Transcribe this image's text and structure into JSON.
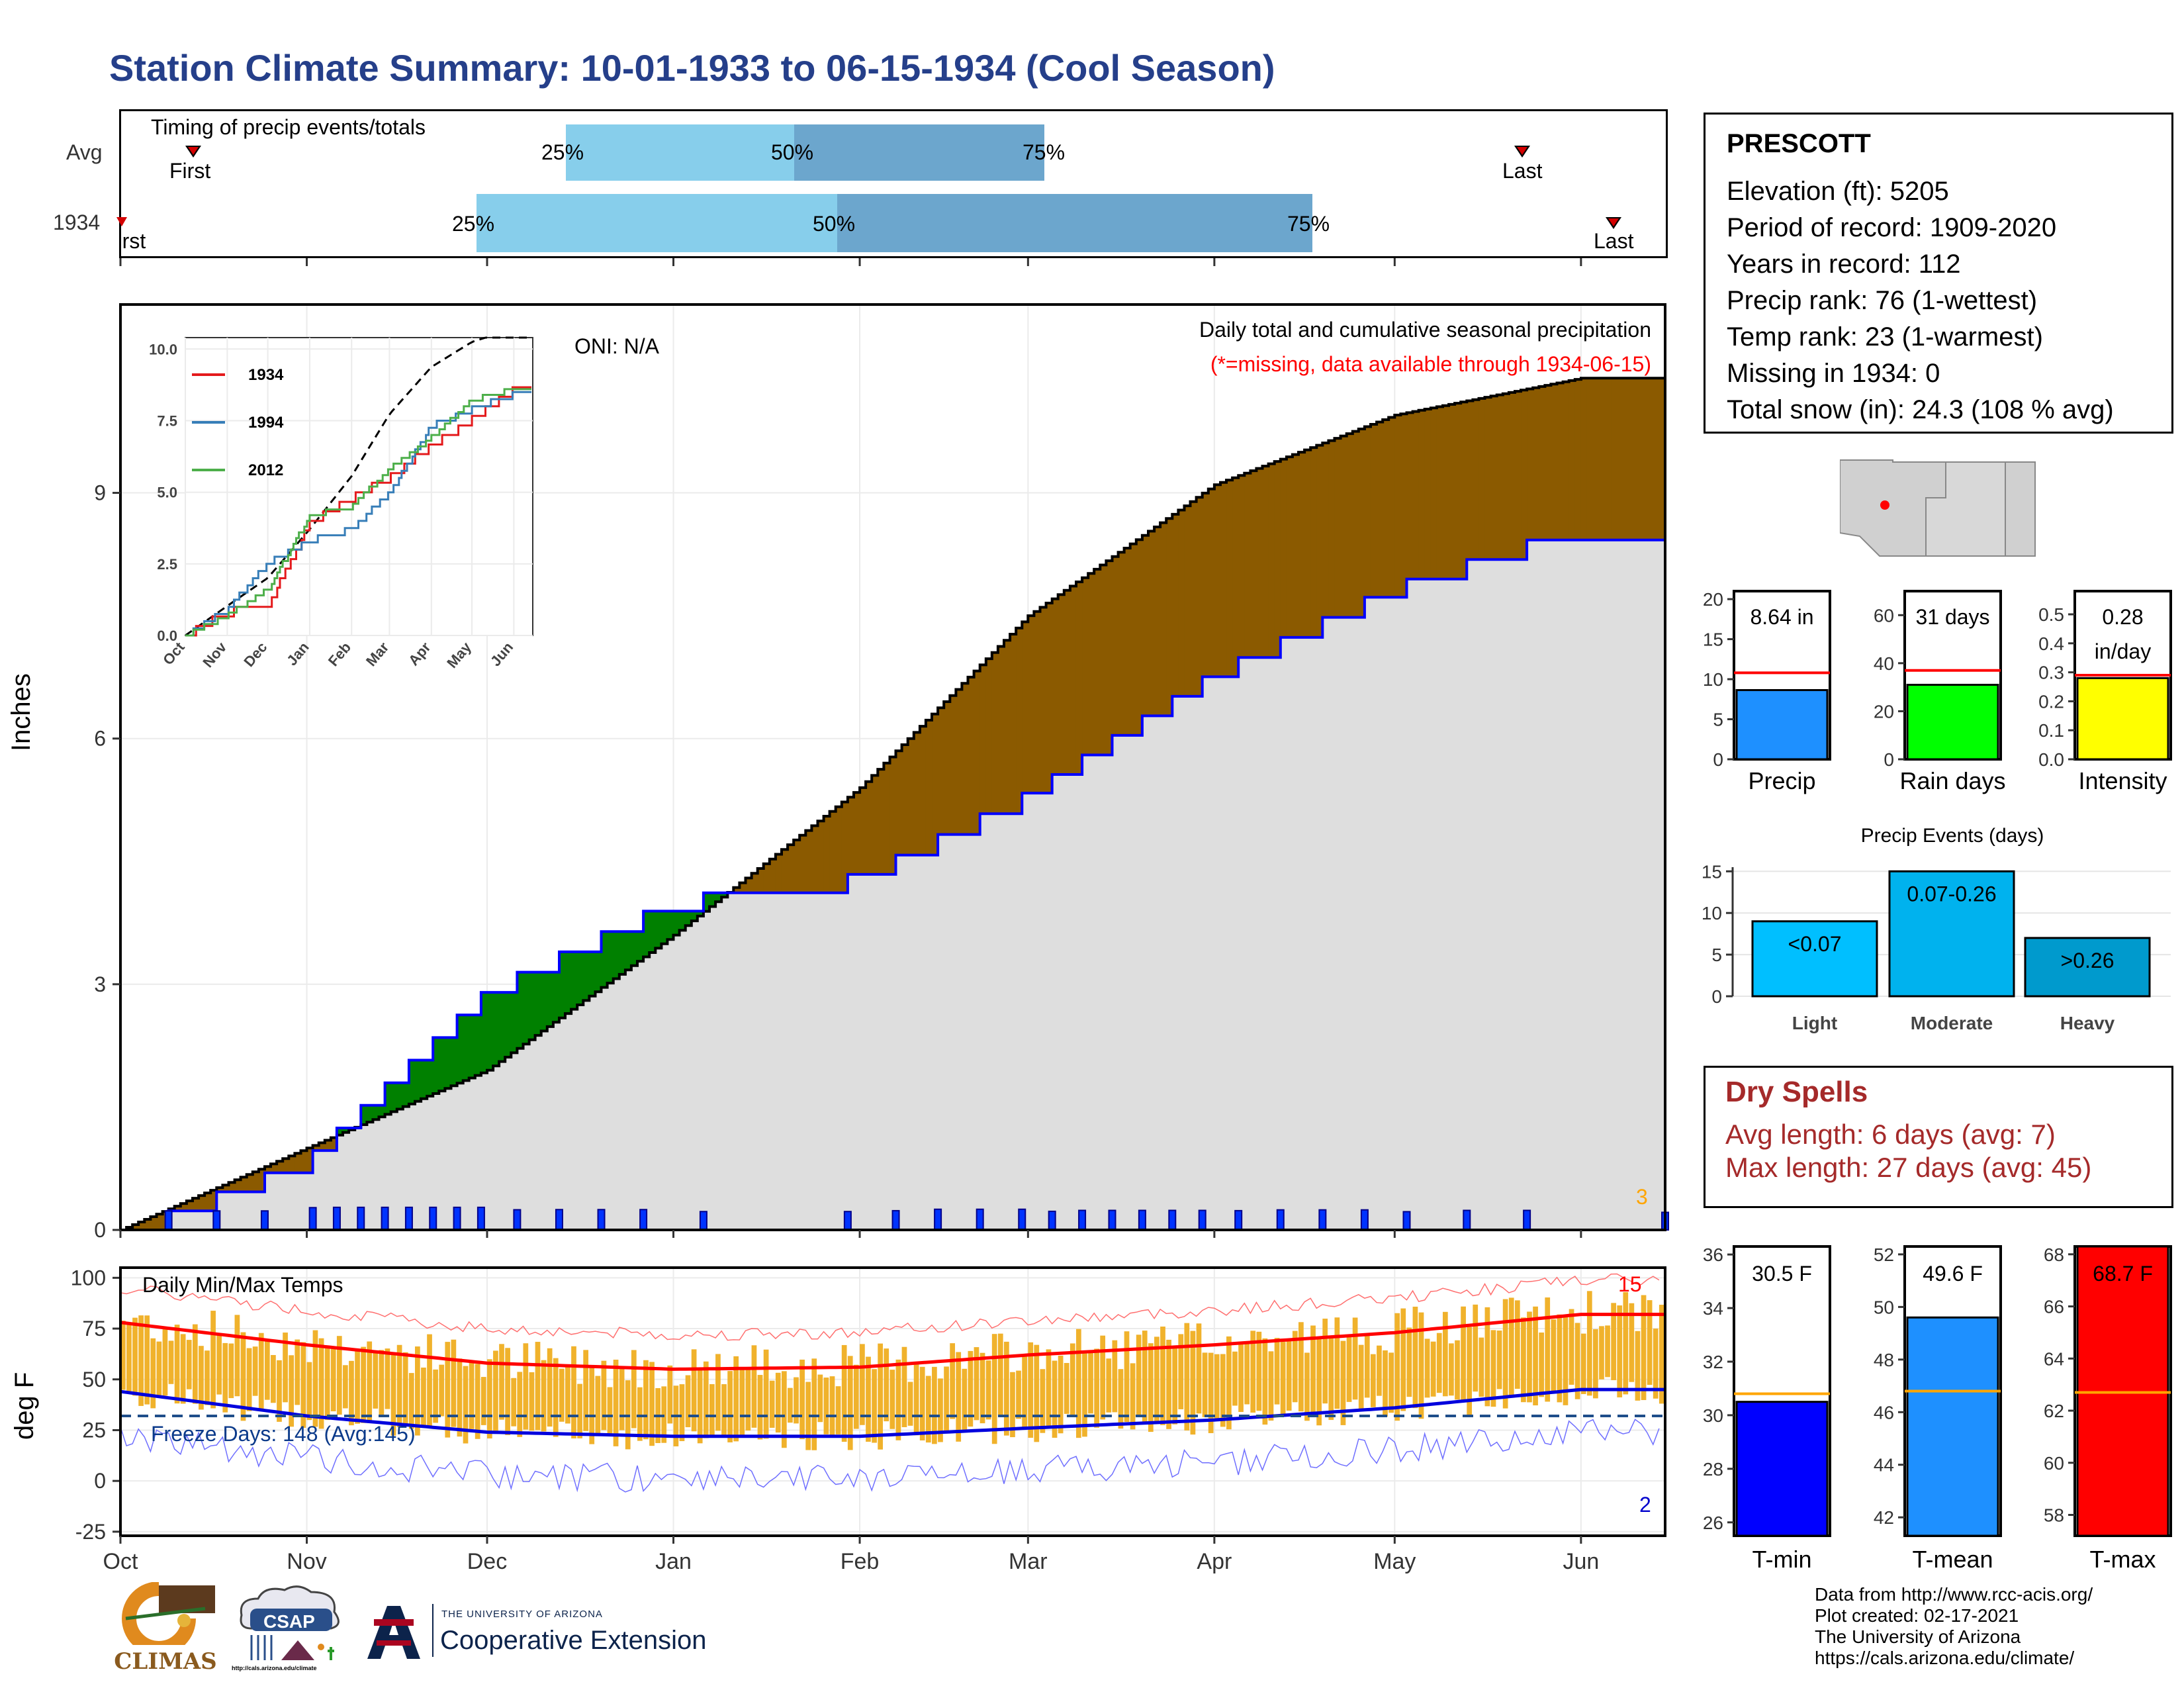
{
  "title": "Station Climate Summary: 10-01-1933 to 06-15-1934 (Cool Season)",
  "timing": {
    "label": "Timing of precip events/totals",
    "rows": [
      {
        "name": "Avg",
        "p25": "25%",
        "p50": "50%",
        "p75": "75%",
        "first": "First",
        "last": "Last"
      },
      {
        "name": "1934",
        "p25": "25%",
        "p50": "50%",
        "p75": "75%",
        "first": "First",
        "last": "Last"
      }
    ]
  },
  "station": {
    "name": "PRESCOTT",
    "lines": [
      "Elevation (ft): 5205",
      "Period of record: 1909-2020",
      "Years in record: 112",
      "Precip rank: 76 (1-wettest)",
      "Temp rank: 23 (1-warmest)",
      "Missing in 1934: 0",
      "Total snow (in): 24.3 (108 % avg)"
    ]
  },
  "precip_panel": {
    "ylabel": "Inches",
    "oni": "ONI: N/A",
    "caption": "Daily total and cumulative seasonal precipitation",
    "missing_note": "(*=missing, data available through 1934-06-15)",
    "corner_count": "3",
    "color_cumulative": "#0000ff",
    "color_avg": "#000000",
    "color_dry": "#8b5a00",
    "color_wet": "#008000"
  },
  "inset": {
    "yticks": [
      "0.0",
      "2.5",
      "5.0",
      "7.5",
      "10.0"
    ],
    "xticks": [
      "Oct",
      "Nov",
      "Dec",
      "Jan",
      "Feb",
      "Mar",
      "Apr",
      "May",
      "Jun"
    ],
    "legend": [
      {
        "name": "1934",
        "color": "#e41a1c"
      },
      {
        "name": "1994",
        "color": "#377eb8"
      },
      {
        "name": "2012",
        "color": "#4daf4a"
      }
    ]
  },
  "temp_panel": {
    "ylabel": "deg F",
    "label": "Daily Min/Max Temps",
    "freeze": "Freeze Days: 148 (Avg:145)",
    "hot_count": "15",
    "cold_count": "2",
    "yticks": [
      "-25",
      "0",
      "25",
      "50",
      "75",
      "100"
    ]
  },
  "x_months": [
    "Oct",
    "Nov",
    "Dec",
    "Jan",
    "Feb",
    "Mar",
    "Apr",
    "May",
    "Jun"
  ],
  "precip_yticks": [
    "0",
    "3",
    "6",
    "9"
  ],
  "mini_bars": [
    {
      "label": "Precip",
      "value_text": "8.64 in",
      "value": 8.64,
      "avg": 10.8,
      "ymax": 21,
      "ticks": [
        "0",
        "5",
        "10",
        "15",
        "20"
      ],
      "color": "#1e90ff"
    },
    {
      "label": "Rain days",
      "value_text": "31 days",
      "value": 31,
      "avg": 37,
      "ymax": 70,
      "ticks": [
        "0",
        "20",
        "40",
        "60"
      ],
      "color": "#00ff00"
    },
    {
      "label": "Intensity",
      "value_text": "0.28",
      "value_text2": "in/day",
      "value": 0.28,
      "avg": 0.29,
      "ymax": 0.58,
      "ticks": [
        "0.0",
        "0.1",
        "0.2",
        "0.3",
        "0.4",
        "0.5"
      ],
      "color": "#ffff00"
    }
  ],
  "events": {
    "title": "Precip Events (days)",
    "ticks": [
      "0",
      "5",
      "10",
      "15"
    ],
    "bars": [
      {
        "label": "Light",
        "text": "<0.07",
        "value": 9,
        "color": "#00bfff"
      },
      {
        "label": "Moderate",
        "text": "0.07-0.26",
        "value": 15,
        "color": "#00b2ee"
      },
      {
        "label": "Heavy",
        "text": ">0.26",
        "value": 7,
        "color": "#009acd"
      }
    ]
  },
  "dry_spells": {
    "title": "Dry Spells",
    "avg_line": "Avg length: 6 days (avg: 7)",
    "max_line": "Max length: 27 days (avg: 45)",
    "color": "#a52a2a"
  },
  "temp_bars": [
    {
      "label": "T-min",
      "value_text": "30.5 F",
      "value": 30.5,
      "avg": 30.8,
      "ymin": 25.5,
      "ymax": 36.3,
      "ticks": [
        "26",
        "28",
        "30",
        "32",
        "34",
        "36"
      ],
      "color": "#0000ff"
    },
    {
      "label": "T-mean",
      "value_text": "49.6 F",
      "value": 49.6,
      "avg": 46.8,
      "ymin": 41.3,
      "ymax": 52.3,
      "ticks": [
        "42",
        "44",
        "46",
        "48",
        "50",
        "52"
      ],
      "color": "#1e90ff"
    },
    {
      "label": "T-max",
      "value_text": "68.7 F",
      "value": 68.7,
      "avg": 62.7,
      "ymin": 57.2,
      "ymax": 68.3,
      "ticks": [
        "58",
        "60",
        "62",
        "64",
        "66",
        "68"
      ],
      "color": "#ff0000"
    }
  ],
  "footer": {
    "lines": [
      "Data from http://www.rcc-acis.org/",
      "Plot created: 02-17-2021",
      "The University of Arizona",
      "https://cals.arizona.edu/climate/"
    ],
    "logo_climas": "CLIMAS",
    "logo_csap": "CSAP",
    "logo_csap_url": "http://cals.arizona.edu/climate",
    "logo_ua_top": "THE UNIVERSITY OF ARIZONA",
    "logo_ua_bottom": "Cooperative Extension"
  },
  "chart_data": [
    {
      "type": "area",
      "title": "Daily total and cumulative seasonal precipitation",
      "ylabel": "Inches",
      "ylim": [
        0,
        11.3
      ],
      "x": [
        "Oct",
        "Nov",
        "Dec",
        "Jan",
        "Feb",
        "Mar",
        "Apr",
        "May",
        "Jun"
      ],
      "series": [
        {
          "name": "cumulative 1934",
          "values": [
            0.0,
            0.9,
            2.97,
            4.07,
            4.36,
            5.37,
            6.85,
            7.9,
            8.64
          ]
        },
        {
          "name": "average",
          "values": [
            0.0,
            1.0,
            1.95,
            3.6,
            5.4,
            7.5,
            9.1,
            9.95,
            10.4
          ]
        }
      ]
    },
    {
      "type": "line",
      "title": "Daily Min/Max Temps",
      "ylabel": "deg F",
      "ylim": [
        -27,
        105
      ],
      "x": [
        "Oct",
        "Nov",
        "Dec",
        "Jan",
        "Feb",
        "Mar",
        "Apr",
        "May",
        "Jun"
      ],
      "series": [
        {
          "name": "avg max",
          "values": [
            78,
            67,
            58,
            55,
            56,
            62,
            67,
            73,
            82
          ]
        },
        {
          "name": "avg min",
          "values": [
            44,
            32,
            24,
            22,
            22,
            26,
            30,
            36,
            45
          ]
        }
      ]
    },
    {
      "type": "line",
      "ylim": [
        0,
        10
      ],
      "x": [
        "Oct",
        "Nov",
        "Dec",
        "Jan",
        "Feb",
        "Mar",
        "Apr",
        "May",
        "Jun"
      ],
      "series": [
        {
          "name": "1934",
          "values": [
            0,
            0.8,
            1.0,
            3.9,
            4.8,
            5.5,
            6.6,
            7.5,
            8.6
          ]
        },
        {
          "name": "1994",
          "values": [
            0,
            0.9,
            2.5,
            3.3,
            3.7,
            5.0,
            7.3,
            7.9,
            8.4
          ]
        },
        {
          "name": "2012",
          "values": [
            0,
            0.7,
            1.6,
            4.2,
            4.5,
            5.8,
            6.9,
            8.2,
            8.6
          ]
        }
      ]
    }
  ]
}
